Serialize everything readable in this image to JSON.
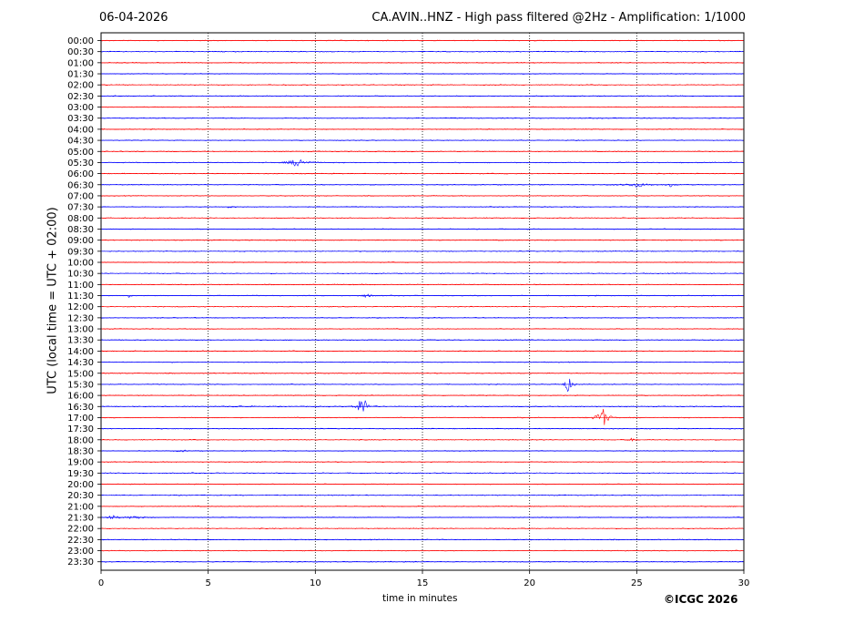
{
  "header": {
    "date": "06-04-2026",
    "title": "CA.AVIN..HNZ - High pass filtered @2Hz - Amplification: 1/1000"
  },
  "footer": {
    "copyright": "©ICGC 2026"
  },
  "chart_data": {
    "type": "line",
    "title": "CA.AVIN..HNZ - High pass filtered @2Hz - Amplification: 1/1000",
    "xlabel": "time in minutes",
    "ylabel": "UTC (local time = UTC + 02:00)",
    "xlim": [
      0,
      30
    ],
    "x_ticks": [
      0,
      5,
      10,
      15,
      20,
      25,
      30
    ],
    "grid": "vertical dotted lines at each x tick",
    "trace_colors": [
      "#ff0000",
      "#0000ff"
    ],
    "rows": [
      "00:00",
      "00:30",
      "01:00",
      "01:30",
      "02:00",
      "02:30",
      "03:00",
      "03:30",
      "04:00",
      "04:30",
      "05:00",
      "05:30",
      "06:00",
      "06:30",
      "07:00",
      "07:30",
      "08:00",
      "08:30",
      "09:00",
      "09:30",
      "10:00",
      "10:30",
      "11:00",
      "11:30",
      "12:00",
      "12:30",
      "13:00",
      "13:30",
      "14:00",
      "14:30",
      "15:00",
      "15:30",
      "16:00",
      "16:30",
      "17:00",
      "17:30",
      "18:00",
      "18:30",
      "19:00",
      "19:30",
      "20:00",
      "20:30",
      "21:00",
      "21:30",
      "22:00",
      "22:30",
      "23:00",
      "23:30"
    ],
    "events": [
      {
        "row": "05:30",
        "minute": 9.2,
        "amplitude": 1.3,
        "duration": 0.8
      },
      {
        "row": "06:30",
        "minute": 25.0,
        "amplitude": 0.6,
        "duration": 1.2
      },
      {
        "row": "06:30",
        "minute": 26.6,
        "amplitude": 0.5,
        "duration": 0.3
      },
      {
        "row": "07:30",
        "minute": 6.0,
        "amplitude": 0.25,
        "duration": 0.5
      },
      {
        "row": "11:30",
        "minute": 1.3,
        "amplitude": 0.4,
        "duration": 0.3
      },
      {
        "row": "11:30",
        "minute": 12.4,
        "amplitude": 0.5,
        "duration": 0.5
      },
      {
        "row": "15:30",
        "minute": 21.8,
        "amplitude": 2.0,
        "duration": 0.4
      },
      {
        "row": "16:30",
        "minute": 12.2,
        "amplitude": 3.0,
        "duration": 0.5
      },
      {
        "row": "16:30",
        "minute": 6.5,
        "amplitude": 0.15,
        "duration": 1.2
      },
      {
        "row": "17:00",
        "minute": 23.4,
        "amplitude": 3.0,
        "duration": 0.5
      },
      {
        "row": "18:00",
        "minute": 24.8,
        "amplitude": 0.5,
        "duration": 0.3
      },
      {
        "row": "18:30",
        "minute": 3.8,
        "amplitude": 0.2,
        "duration": 0.6
      },
      {
        "row": "21:30",
        "minute": 0.5,
        "amplitude": 0.6,
        "duration": 0.6
      },
      {
        "row": "21:30",
        "minute": 1.6,
        "amplitude": 0.5,
        "duration": 0.7
      }
    ]
  }
}
